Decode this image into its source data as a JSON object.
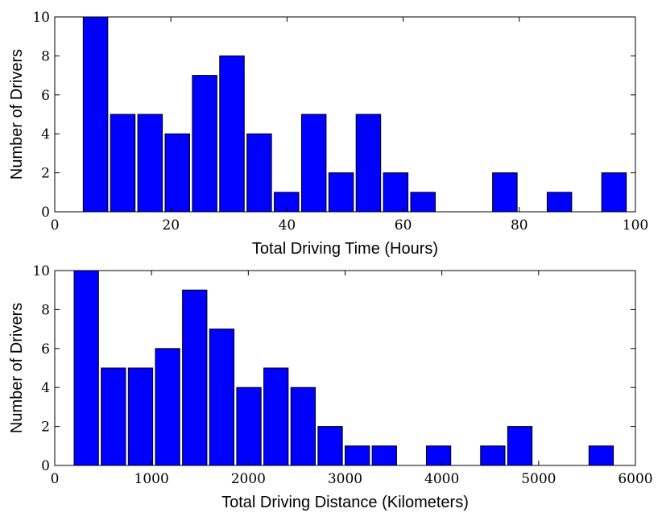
{
  "chart_data": [
    {
      "type": "bar",
      "title": "",
      "xlabel": "Total Driving Time (Hours)",
      "ylabel": "Number of Drivers",
      "xlim": [
        0,
        100
      ],
      "ylim": [
        0,
        10
      ],
      "xticks": [
        "0",
        "20",
        "40",
        "60",
        "80",
        "100"
      ],
      "yticks": [
        "0",
        "2",
        "4",
        "6",
        "8",
        "10"
      ],
      "bin_start": 4.9,
      "bin_width": 4.7,
      "bar_fraction": 0.9,
      "values": [
        10,
        5,
        5,
        4,
        7,
        8,
        4,
        1,
        5,
        2,
        5,
        2,
        1,
        0,
        0,
        2,
        0,
        1,
        0,
        2
      ],
      "bar_color": "#0000ff"
    },
    {
      "type": "bar",
      "title": "",
      "xlabel": "Total Driving Distance (Kilometers)",
      "ylabel": "Number of Drivers",
      "xlim": [
        0,
        6000
      ],
      "ylim": [
        0,
        10
      ],
      "xticks": [
        "0",
        "1000",
        "2000",
        "3000",
        "4000",
        "5000",
        "6000"
      ],
      "yticks": [
        "0",
        "2",
        "4",
        "6",
        "8",
        "10"
      ],
      "bin_start": 200,
      "bin_width": 280,
      "bar_fraction": 0.9,
      "values": [
        10,
        5,
        5,
        6,
        9,
        7,
        4,
        5,
        4,
        2,
        1,
        1,
        0,
        1,
        0,
        1,
        2,
        0,
        0,
        1
      ],
      "bar_color": "#0000ff"
    }
  ]
}
